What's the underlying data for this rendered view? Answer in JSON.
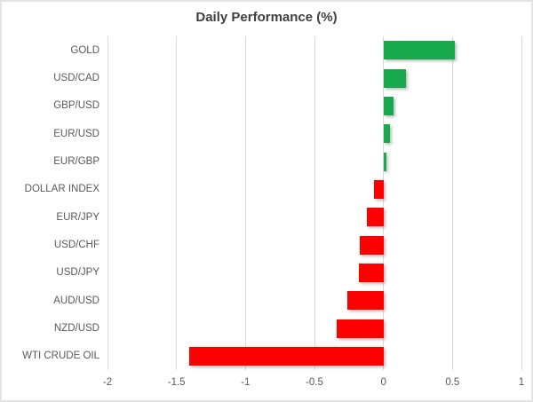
{
  "title": "Daily Performance (%)",
  "colors": {
    "positive": "#17a94b",
    "negative": "#fe0000",
    "gridline": "#d9d9d9",
    "title_text": "#3f3f3f",
    "label_text": "#595959",
    "frame_border": "#e3e3e3",
    "background": "#ffffff"
  },
  "chart_data": {
    "type": "bar",
    "orientation": "horizontal",
    "title": "Daily Performance (%)",
    "categories": [
      "GOLD",
      "USD/CAD",
      "GBP/USD",
      "EUR/USD",
      "EUR/GBP",
      "DOLLAR INDEX",
      "EUR/JPY",
      "USD/CHF",
      "USD/JPY",
      "AUD/USD",
      "NZD/USD",
      "WTI CRUDE OIL"
    ],
    "values": [
      0.52,
      0.16,
      0.07,
      0.05,
      0.02,
      -0.07,
      -0.12,
      -0.17,
      -0.18,
      -0.26,
      -0.34,
      -1.41
    ],
    "xlabel": "",
    "ylabel": "",
    "xlim": [
      -2,
      1
    ],
    "xticks": [
      -2,
      -1.5,
      -1,
      -0.5,
      0,
      0.5,
      1
    ],
    "xtick_labels": [
      "-2",
      "-1.5",
      "-1",
      "-0.5",
      "0",
      "0.5",
      "1"
    ],
    "grid": true,
    "legend": false,
    "bar_color_rule": "green if positive, red if negative"
  }
}
